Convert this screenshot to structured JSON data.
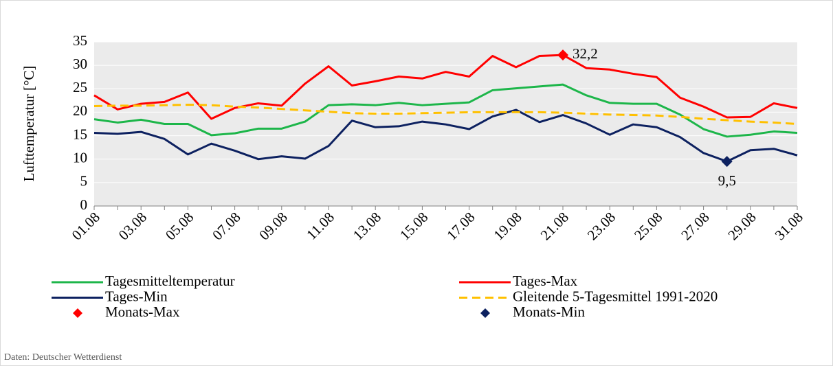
{
  "chart_data": {
    "type": "line",
    "y_label": "Lufttemperatur [°C]",
    "source": "Daten: Deutscher Wetterdienst",
    "categories": [
      "01.08",
      null,
      "03.08",
      null,
      "05.08",
      null,
      "07.08",
      null,
      "09.08",
      null,
      "11.08",
      null,
      "13.08",
      null,
      "15.08",
      null,
      "17.08",
      null,
      "19.08",
      null,
      "21.08",
      null,
      "23.08",
      null,
      "25.08",
      null,
      "27.08",
      null,
      "29.08",
      null,
      "31.08"
    ],
    "ylim": [
      0,
      35
    ],
    "yticks": [
      0,
      5,
      10,
      15,
      20,
      25,
      30,
      35
    ],
    "grid": true,
    "series": [
      {
        "name": "Tagesmitteltemperatur",
        "color": "#1db64a",
        "style": "solid",
        "values": [
          18.5,
          17.8,
          18.4,
          17.5,
          17.5,
          15.1,
          15.5,
          16.5,
          16.5,
          18.0,
          21.5,
          21.7,
          21.5,
          22.0,
          21.5,
          21.8,
          22.1,
          24.7,
          25.1,
          25.5,
          25.9,
          23.6,
          22.0,
          21.8,
          21.8,
          19.5,
          16.4,
          14.8,
          15.2,
          15.9,
          15.6
        ]
      },
      {
        "name": "Tages-Max",
        "color": "#ff0000",
        "style": "solid",
        "values": [
          23.6,
          20.6,
          21.8,
          22.2,
          24.2,
          18.6,
          20.9,
          21.9,
          21.4,
          26.1,
          29.8,
          25.7,
          26.6,
          27.6,
          27.2,
          28.6,
          27.6,
          32.0,
          29.6,
          32.0,
          32.2,
          29.4,
          29.1,
          28.2,
          27.5,
          23.1,
          21.2,
          18.9,
          19.0,
          21.9,
          20.9
        ]
      },
      {
        "name": "Tages-Min",
        "color": "#0d2160",
        "style": "solid",
        "values": [
          15.6,
          15.4,
          15.8,
          14.3,
          11.0,
          13.3,
          11.8,
          10.0,
          10.6,
          10.1,
          12.8,
          18.2,
          16.8,
          17.0,
          18.0,
          17.4,
          16.4,
          19.1,
          20.5,
          17.9,
          19.4,
          17.6,
          15.2,
          17.4,
          16.8,
          14.7,
          11.3,
          9.5,
          11.9,
          12.2,
          10.8
        ]
      },
      {
        "name": "Gleitende 5-Tagesmittel 1991-2020",
        "color": "#ffc000",
        "style": "dashed",
        "values": [
          21.3,
          21.4,
          21.4,
          21.5,
          21.6,
          21.5,
          21.2,
          21.0,
          20.7,
          20.4,
          20.1,
          19.8,
          19.7,
          19.7,
          19.8,
          19.9,
          20.0,
          20.0,
          20.0,
          20.0,
          19.9,
          19.7,
          19.5,
          19.4,
          19.3,
          19.0,
          18.6,
          18.3,
          18.0,
          17.8,
          17.5
        ]
      },
      {
        "name": "Monats-Max",
        "color": "#ff0000",
        "style": "marker",
        "label_position": "right",
        "values": [
          null,
          null,
          null,
          null,
          null,
          null,
          null,
          null,
          null,
          null,
          null,
          null,
          null,
          null,
          null,
          null,
          null,
          null,
          null,
          null,
          32.2,
          null,
          null,
          null,
          null,
          null,
          null,
          null,
          null,
          null,
          null
        ],
        "value_labels": [
          null,
          null,
          null,
          null,
          null,
          null,
          null,
          null,
          null,
          null,
          null,
          null,
          null,
          null,
          null,
          null,
          null,
          null,
          null,
          null,
          "32,2",
          null,
          null,
          null,
          null,
          null,
          null,
          null,
          null,
          null,
          null
        ]
      },
      {
        "name": "Monats-Min",
        "color": "#0d2160",
        "style": "marker",
        "label_position": "below",
        "values": [
          null,
          null,
          null,
          null,
          null,
          null,
          null,
          null,
          null,
          null,
          null,
          null,
          null,
          null,
          null,
          null,
          null,
          null,
          null,
          null,
          null,
          null,
          null,
          null,
          null,
          null,
          null,
          9.5,
          null,
          null,
          null
        ],
        "value_labels": [
          null,
          null,
          null,
          null,
          null,
          null,
          null,
          null,
          null,
          null,
          null,
          null,
          null,
          null,
          null,
          null,
          null,
          null,
          null,
          null,
          null,
          null,
          null,
          null,
          null,
          null,
          null,
          "9,5",
          null,
          null,
          null
        ]
      }
    ]
  }
}
